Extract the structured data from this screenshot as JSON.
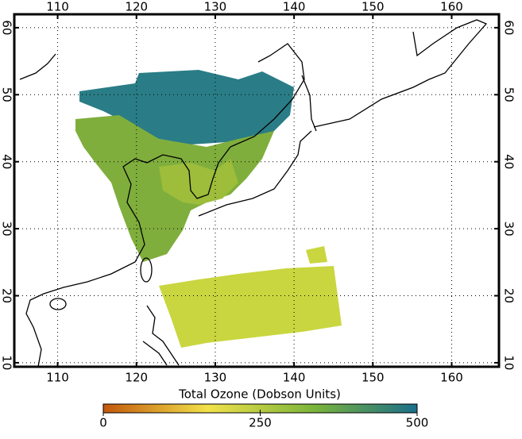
{
  "map": {
    "type": "map",
    "xlim": [
      104.5,
      166
    ],
    "ylim": [
      9.4,
      62
    ],
    "xticks": [
      110,
      120,
      130,
      140,
      150,
      160
    ],
    "yticks": [
      10,
      20,
      30,
      40,
      50,
      60
    ],
    "grid": true,
    "colorbar": {
      "label": "Total Ozone (Dobson Units)",
      "lim": [
        0,
        500
      ],
      "ticks": [
        0,
        250,
        500
      ],
      "colors": [
        "#c2580c",
        "#f2e24a",
        "#7cb53a",
        "#1a6e8a"
      ]
    }
  }
}
